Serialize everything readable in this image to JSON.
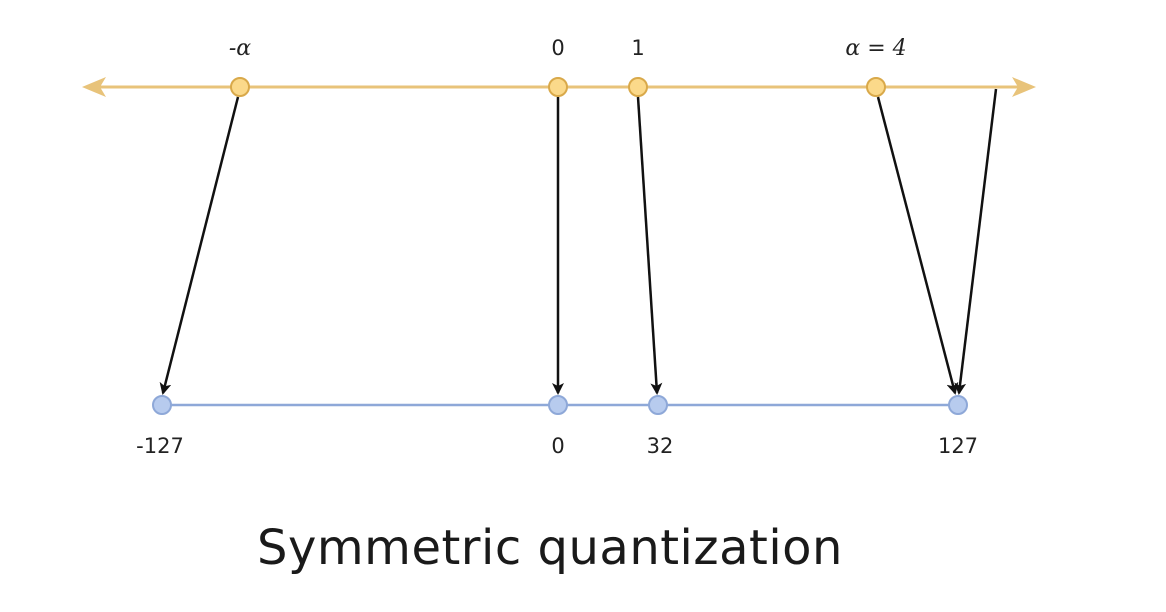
{
  "caption": "Symmetric quantization",
  "colors": {
    "float_axis": "#e8c37a",
    "float_point_fill": "#fbd98a",
    "float_point_stroke": "#d9a94a",
    "int_axis": "#8ea8d8",
    "int_point_fill": "#b7cbee",
    "int_point_stroke": "#8ea8d8",
    "arrow": "#111111"
  },
  "float_axis": {
    "labels": {
      "neg_alpha": "-α",
      "zero": "0",
      "one": "1",
      "alpha": "α = 4"
    }
  },
  "int_axis": {
    "labels": {
      "min": "-127",
      "zero": "0",
      "mapped_one": "32",
      "max": "127"
    }
  }
}
